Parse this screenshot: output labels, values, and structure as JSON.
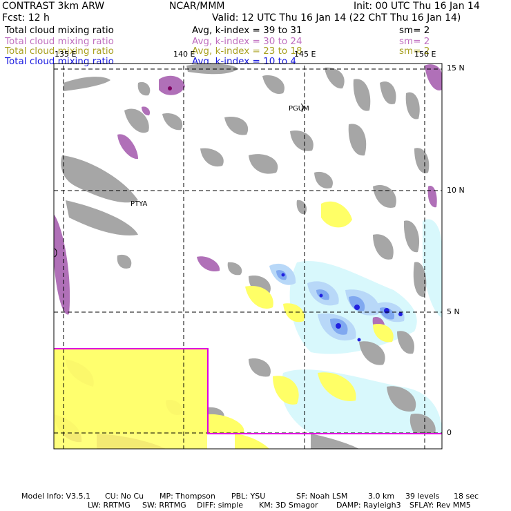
{
  "header": {
    "model": "CONTRAST  3km ARW",
    "org": "NCAR/MMM",
    "init": "Init: 00 UTC Thu 16 Jan 14",
    "fcst": "Fcst:   12 h",
    "valid": "Valid: 12 UTC Thu 16 Jan 14 (22 ChT Thu 16 Jan 14)"
  },
  "fields": [
    {
      "name": "Total cloud mixing ratio",
      "avg": "Avg, k-index =  39  to  31",
      "sm": "sm= 2",
      "color": "#000000"
    },
    {
      "name": "Total cloud mixing ratio",
      "avg": "Avg, k-index =  30  to  24",
      "sm": "sm= 2",
      "color": "#c070c0"
    },
    {
      "name": "Total cloud mixing ratio",
      "avg": "Avg, k-index =  23  to  18",
      "sm": "sm= 2",
      "color": "#a8a020"
    },
    {
      "name": "Total cloud mixing ratio",
      "avg": "Avg, k-index =  10  to   4",
      "sm": "",
      "color": "#1a1ae0"
    }
  ],
  "axes": {
    "lon_labels": [
      "135 E",
      "140 E",
      "145 E",
      "150 E"
    ],
    "lat_labels": [
      "15 N",
      "10 N",
      "5 N",
      "0"
    ]
  },
  "places": [
    "PGUM",
    "PTYA"
  ],
  "footer": {
    "line1": [
      "Model Info: V3.5.1",
      "CU: No Cu",
      "MP: Thompson",
      "PBL: YSU",
      "SF: Noah LSM",
      "3.0 km",
      "39 levels",
      "18 sec"
    ],
    "line2": [
      "LW: RRTMG",
      "SW: RRTMG",
      "DIFF: simple",
      "KM: 3D Smagor",
      "DAMP: Rayleigh3",
      "SFLAY: Rev MM5"
    ]
  },
  "colors": {
    "cloud_gray": "#a6a6a6",
    "cloud_purple": "#b070b8",
    "cloud_yellow": "#ffff66",
    "cloud_lightblue": "#d8f8fc",
    "cloud_blue1": "#b8d8f8",
    "cloud_blue2": "#80a8f0",
    "cloud_blue3": "#2020e0",
    "domain_box": "#e000e0"
  }
}
